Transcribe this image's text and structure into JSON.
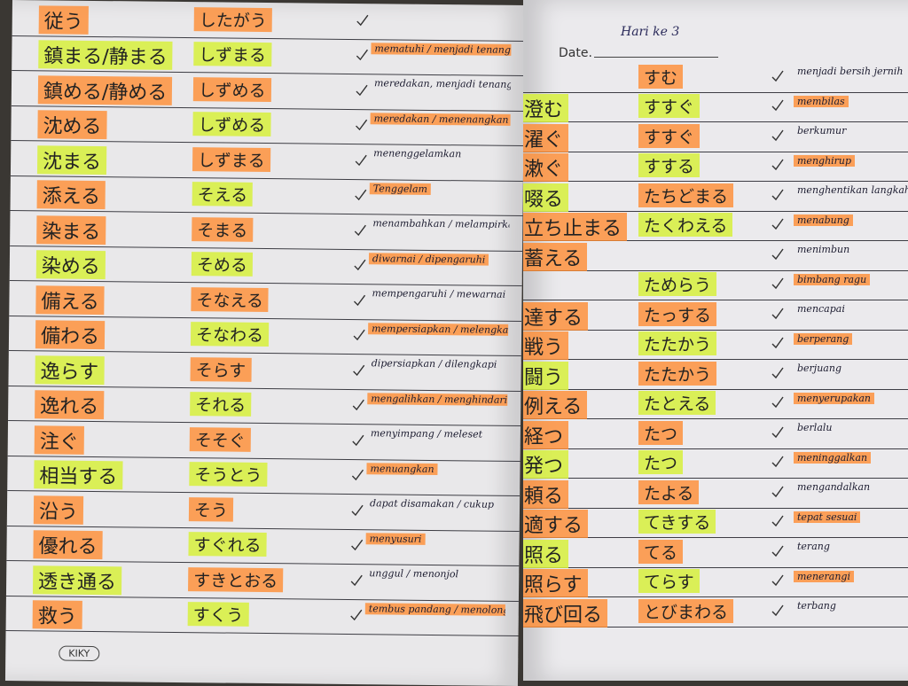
{
  "left_page": {
    "footer": "KIKY",
    "rows": [
      {
        "kanji": "従う",
        "reading": "したがう",
        "meaning": ""
      },
      {
        "kanji": "鎮まる/静まる",
        "reading": "しずまる",
        "meaning": "mematuhi / menjadi tenang"
      },
      {
        "kanji": "鎮める/静める",
        "reading": "しずめる",
        "meaning": "meredakan, menjadi tenang"
      },
      {
        "kanji": "沈める",
        "reading": "しずめる",
        "meaning": "meredakan / menenangkan"
      },
      {
        "kanji": "沈まる",
        "reading": "しずまる",
        "meaning": "menenggelamkan"
      },
      {
        "kanji": "添える",
        "reading": "そえる",
        "meaning": "Tenggelam"
      },
      {
        "kanji": "染まる",
        "reading": "そまる",
        "meaning": "menambahkan / melampirkan"
      },
      {
        "kanji": "染める",
        "reading": "そめる",
        "meaning": "diwarnai / dipengaruhi"
      },
      {
        "kanji": "備える",
        "reading": "そなえる",
        "meaning": "mempengaruhi / mewarnai"
      },
      {
        "kanji": "備わる",
        "reading": "そなわる",
        "meaning": "mempersiapkan / melengkapi"
      },
      {
        "kanji": "逸らす",
        "reading": "そらす",
        "meaning": "dipersiapkan / dilengkapi"
      },
      {
        "kanji": "逸れる",
        "reading": "それる",
        "meaning": "mengalihkan / menghindari"
      },
      {
        "kanji": "注ぐ",
        "reading": "そそぐ",
        "meaning": "menyimpang / meleset"
      },
      {
        "kanji": "相当する",
        "reading": "そうとう",
        "meaning": "menuangkan"
      },
      {
        "kanji": "沿う",
        "reading": "そう",
        "meaning": "dapat disamakan / cukup"
      },
      {
        "kanji": "優れる",
        "reading": "すぐれる",
        "meaning": "menyusuri"
      },
      {
        "kanji": "透き通る",
        "reading": "すきとおる",
        "meaning": "unggul / menonjol"
      },
      {
        "kanji": "救う",
        "reading": "すくう",
        "meaning": "tembus pandang / menolong / menyelamatkan"
      }
    ]
  },
  "right_page": {
    "date_label": "Date.",
    "date_value": "Hari ke 3",
    "rows": [
      {
        "kanji": "",
        "reading": "すむ",
        "meaning": "menjadi bersih jernih"
      },
      {
        "kanji": "澄む",
        "reading": "すすぐ",
        "meaning": "membilas"
      },
      {
        "kanji": "濯ぐ",
        "reading": "すすぐ",
        "meaning": "berkumur"
      },
      {
        "kanji": "漱ぐ",
        "reading": "すする",
        "meaning": "menghirup"
      },
      {
        "kanji": "啜る",
        "reading": "たちどまる",
        "meaning": "menghentikan langkah"
      },
      {
        "kanji": "立ち止まる",
        "reading": "たくわえる",
        "meaning": "menabung"
      },
      {
        "kanji": "蓄える",
        "reading": "",
        "meaning": "menimbun"
      },
      {
        "kanji": "",
        "reading": "ためらう",
        "meaning": "bimbang ragu"
      },
      {
        "kanji": "達する",
        "reading": "たっする",
        "meaning": "mencapai"
      },
      {
        "kanji": "戦う",
        "reading": "たたかう",
        "meaning": "berperang"
      },
      {
        "kanji": "闘う",
        "reading": "たたかう",
        "meaning": "berjuang"
      },
      {
        "kanji": "例える",
        "reading": "たとえる",
        "meaning": "menyerupakan"
      },
      {
        "kanji": "経つ",
        "reading": "たつ",
        "meaning": "berlalu"
      },
      {
        "kanji": "発つ",
        "reading": "たつ",
        "meaning": "meninggalkan"
      },
      {
        "kanji": "頼る",
        "reading": "たよる",
        "meaning": "mengandalkan"
      },
      {
        "kanji": "適する",
        "reading": "てきする",
        "meaning": "tepat sesuai"
      },
      {
        "kanji": "照る",
        "reading": "てる",
        "meaning": "terang"
      },
      {
        "kanji": "照らす",
        "reading": "てらす",
        "meaning": "menerangi"
      },
      {
        "kanji": "飛び回る",
        "reading": "とびまわる",
        "meaning": "terbang"
      }
    ]
  }
}
